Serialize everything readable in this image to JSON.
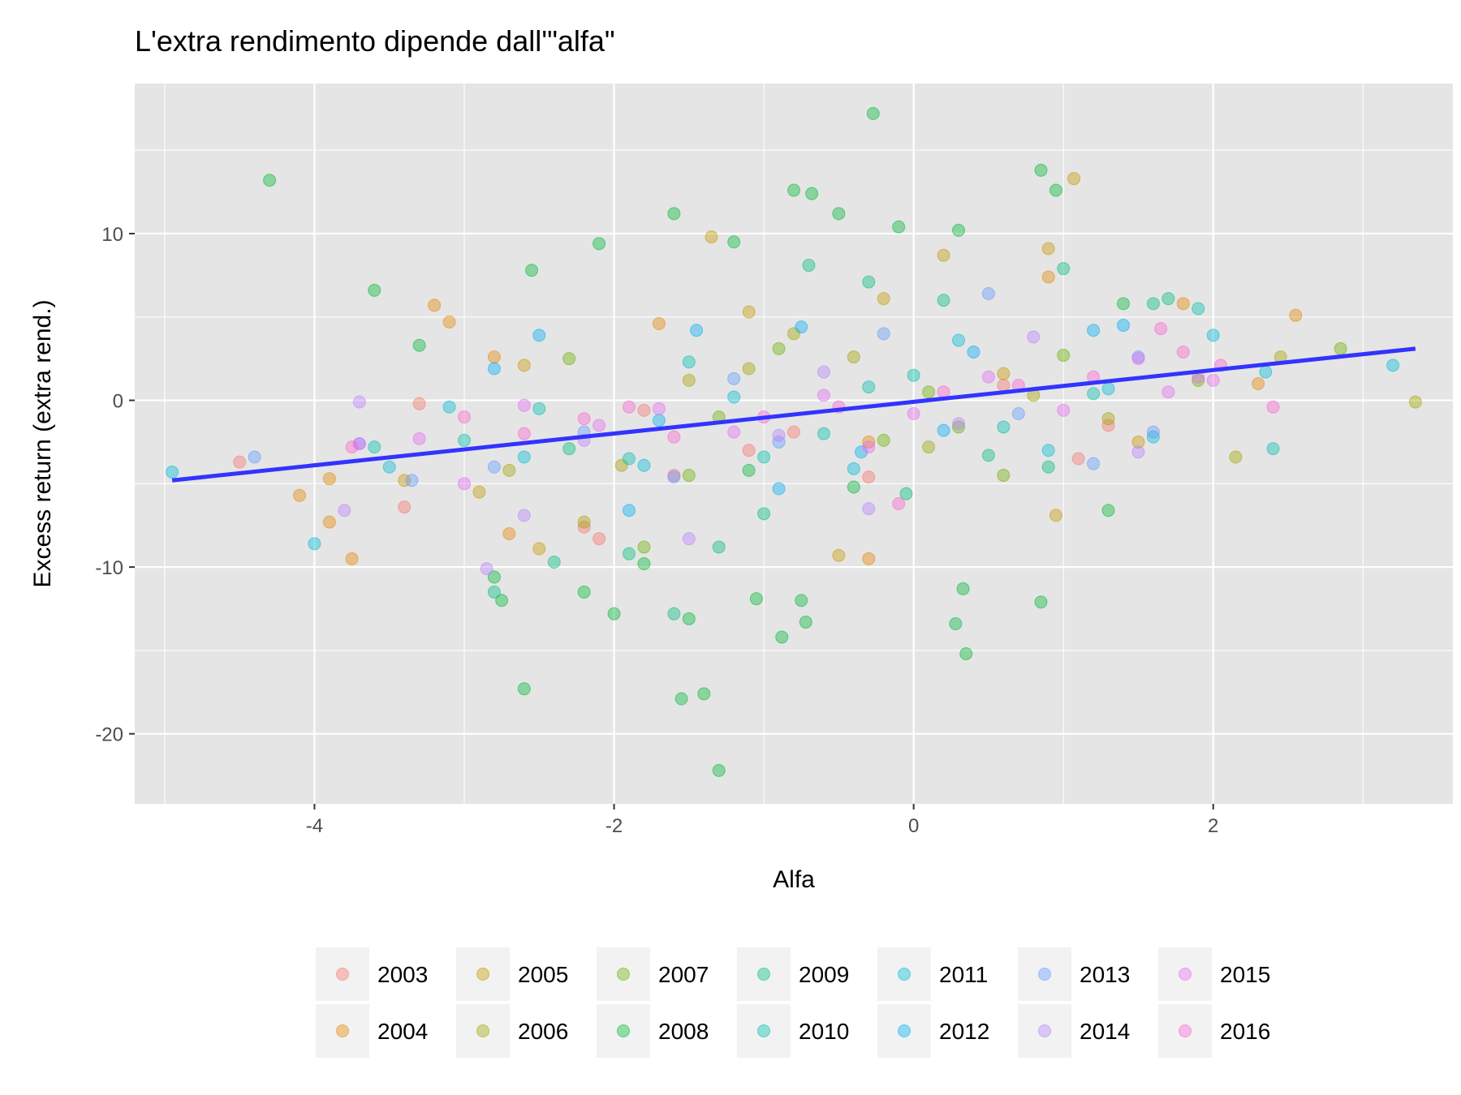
{
  "chart_data": {
    "type": "scatter",
    "title": "L'extra rendimento dipende dall'\"alfa\"",
    "xlabel": "Alfa",
    "ylabel": "Excess return (extra rend.)",
    "xlim": [
      -5.2,
      3.6
    ],
    "ylim": [
      -24.2,
      19.0
    ],
    "x_ticks": [
      -4,
      -2,
      0,
      2
    ],
    "x_tick_labels": [
      "-4",
      "-2",
      "0",
      "2"
    ],
    "y_ticks": [
      -20,
      -10,
      0,
      10
    ],
    "y_tick_labels": [
      "-20",
      "-10",
      "0",
      "10"
    ],
    "grid": true,
    "legend_position": "bottom",
    "point_opacity": 0.4,
    "series": [
      {
        "name": "2003",
        "color": "#F8766D",
        "points": [
          [
            -4.5,
            -3.7
          ],
          [
            -3.4,
            -6.4
          ],
          [
            -3.3,
            -0.2
          ],
          [
            -2.2,
            -7.6
          ],
          [
            -2.1,
            -8.3
          ],
          [
            -1.6,
            -4.5
          ],
          [
            -1.1,
            -3.0
          ],
          [
            -0.3,
            -4.6
          ],
          [
            0.6,
            0.9
          ],
          [
            1.1,
            -3.5
          ],
          [
            1.3,
            -1.5
          ],
          [
            -1.8,
            -0.6
          ],
          [
            -0.8,
            -1.9
          ]
        ]
      },
      {
        "name": "2004",
        "color": "#E58700",
        "points": [
          [
            -4.1,
            -5.7
          ],
          [
            -3.9,
            -4.7
          ],
          [
            -3.75,
            -9.5
          ],
          [
            -3.9,
            -7.3
          ],
          [
            -3.2,
            5.7
          ],
          [
            -3.1,
            4.7
          ],
          [
            -2.8,
            2.6
          ],
          [
            -2.7,
            -8.0
          ],
          [
            -1.7,
            4.6
          ],
          [
            -0.3,
            -2.5
          ],
          [
            0.9,
            7.4
          ],
          [
            1.8,
            5.8
          ],
          [
            2.3,
            1.0
          ],
          [
            2.55,
            5.1
          ],
          [
            -0.3,
            -9.5
          ]
        ]
      },
      {
        "name": "2005",
        "color": "#C99800",
        "points": [
          [
            -3.4,
            -4.8
          ],
          [
            -2.9,
            -5.5
          ],
          [
            -2.6,
            2.1
          ],
          [
            -2.5,
            -8.9
          ],
          [
            -1.35,
            9.8
          ],
          [
            -1.1,
            5.3
          ],
          [
            -0.5,
            -9.3
          ],
          [
            0.2,
            8.7
          ],
          [
            0.9,
            9.1
          ],
          [
            1.07,
            13.3
          ],
          [
            0.95,
            -6.9
          ],
          [
            -0.2,
            6.1
          ],
          [
            1.5,
            -2.5
          ],
          [
            0.6,
            1.6
          ]
        ]
      },
      {
        "name": "2006",
        "color": "#A3A500",
        "points": [
          [
            -2.7,
            -4.2
          ],
          [
            -2.2,
            -7.3
          ],
          [
            -1.95,
            -3.9
          ],
          [
            -1.5,
            1.2
          ],
          [
            -0.8,
            4.0
          ],
          [
            -0.4,
            2.6
          ],
          [
            0.1,
            -2.8
          ],
          [
            0.8,
            0.3
          ],
          [
            1.3,
            -1.1
          ],
          [
            2.15,
            -3.4
          ],
          [
            2.45,
            2.6
          ],
          [
            3.35,
            -0.1
          ],
          [
            -1.1,
            1.9
          ]
        ]
      },
      {
        "name": "2007",
        "color": "#6BB100",
        "points": [
          [
            -2.3,
            2.5
          ],
          [
            -1.8,
            -8.8
          ],
          [
            -1.5,
            -4.5
          ],
          [
            -0.9,
            3.1
          ],
          [
            -0.2,
            -2.4
          ],
          [
            0.3,
            -1.6
          ],
          [
            0.6,
            -4.5
          ],
          [
            1.0,
            2.7
          ],
          [
            2.85,
            3.1
          ],
          [
            1.9,
            1.2
          ],
          [
            -1.3,
            -1.0
          ],
          [
            0.1,
            0.5
          ]
        ]
      },
      {
        "name": "2008",
        "color": "#00BA38",
        "points": [
          [
            -4.3,
            13.2
          ],
          [
            -3.6,
            6.6
          ],
          [
            -3.3,
            3.3
          ],
          [
            -2.8,
            -10.6
          ],
          [
            -2.75,
            -12.0
          ],
          [
            -2.6,
            -17.3
          ],
          [
            -2.55,
            7.8
          ],
          [
            -2.1,
            9.4
          ],
          [
            -1.6,
            11.2
          ],
          [
            -1.55,
            -17.9
          ],
          [
            -1.3,
            -22.2
          ],
          [
            -1.4,
            -17.6
          ],
          [
            -1.2,
            9.5
          ],
          [
            -0.8,
            12.6
          ],
          [
            -0.68,
            12.4
          ],
          [
            -0.5,
            11.2
          ],
          [
            -0.27,
            17.2
          ],
          [
            -0.1,
            10.4
          ],
          [
            0.3,
            10.2
          ],
          [
            0.35,
            -15.2
          ],
          [
            0.85,
            13.8
          ],
          [
            0.95,
            12.6
          ],
          [
            -0.72,
            -13.3
          ],
          [
            -0.75,
            -12.0
          ],
          [
            -0.88,
            -14.2
          ],
          [
            0.33,
            -11.3
          ],
          [
            0.28,
            -13.4
          ],
          [
            0.85,
            -12.1
          ],
          [
            -2.0,
            -12.8
          ],
          [
            -2.2,
            -11.5
          ],
          [
            -1.5,
            -13.1
          ],
          [
            -1.05,
            -11.9
          ],
          [
            -1.8,
            -9.8
          ],
          [
            1.3,
            -6.6
          ],
          [
            1.4,
            5.8
          ],
          [
            -1.1,
            -4.2
          ],
          [
            -0.4,
            -5.2
          ]
        ]
      },
      {
        "name": "2009",
        "color": "#00BF7D",
        "points": [
          [
            -2.8,
            -11.5
          ],
          [
            -2.4,
            -9.7
          ],
          [
            -1.9,
            -9.2
          ],
          [
            -1.3,
            -8.8
          ],
          [
            -1.6,
            -12.8
          ],
          [
            -0.7,
            8.1
          ],
          [
            -0.3,
            7.1
          ],
          [
            -0.05,
            -5.6
          ],
          [
            0.5,
            -3.3
          ],
          [
            1.0,
            7.9
          ],
          [
            1.6,
            5.8
          ],
          [
            1.7,
            6.1
          ],
          [
            -1.0,
            -6.8
          ],
          [
            0.2,
            6.0
          ],
          [
            -2.3,
            -2.9
          ],
          [
            0.9,
            -4.0
          ]
        ]
      },
      {
        "name": "2010",
        "color": "#00C0AF",
        "points": [
          [
            -3.6,
            -2.8
          ],
          [
            -3.0,
            -2.4
          ],
          [
            -2.5,
            -0.5
          ],
          [
            -1.9,
            -3.5
          ],
          [
            -1.5,
            2.3
          ],
          [
            -1.0,
            -3.4
          ],
          [
            -0.6,
            -2.0
          ],
          [
            0.0,
            1.5
          ],
          [
            0.6,
            -1.6
          ],
          [
            1.2,
            0.4
          ],
          [
            1.9,
            5.5
          ],
          [
            2.4,
            -2.9
          ],
          [
            -0.3,
            0.8
          ]
        ]
      },
      {
        "name": "2011",
        "color": "#00BCD8",
        "points": [
          [
            -4.95,
            -4.3
          ],
          [
            -4.0,
            -8.6
          ],
          [
            -3.5,
            -4.0
          ],
          [
            -3.1,
            -0.4
          ],
          [
            -2.6,
            -3.4
          ],
          [
            -1.8,
            -3.9
          ],
          [
            -1.2,
            0.2
          ],
          [
            -0.4,
            -4.1
          ],
          [
            0.3,
            3.6
          ],
          [
            0.9,
            -3.0
          ],
          [
            1.6,
            -2.2
          ],
          [
            2.0,
            3.9
          ],
          [
            2.35,
            1.7
          ],
          [
            3.2,
            2.1
          ],
          [
            1.3,
            0.7
          ]
        ]
      },
      {
        "name": "2012",
        "color": "#00B0F6",
        "points": [
          [
            -2.8,
            1.9
          ],
          [
            -2.5,
            3.9
          ],
          [
            -1.9,
            -6.6
          ],
          [
            -1.45,
            4.2
          ],
          [
            -0.75,
            4.4
          ],
          [
            -0.9,
            -5.3
          ],
          [
            -0.35,
            -3.1
          ],
          [
            0.4,
            2.9
          ],
          [
            1.2,
            4.2
          ],
          [
            1.4,
            4.5
          ],
          [
            -1.7,
            -1.2
          ],
          [
            0.2,
            -1.8
          ]
        ]
      },
      {
        "name": "2013",
        "color": "#619CFF",
        "points": [
          [
            -4.4,
            -3.4
          ],
          [
            -3.7,
            -2.6
          ],
          [
            -3.35,
            -4.8
          ],
          [
            -2.8,
            -4.0
          ],
          [
            -2.2,
            -1.9
          ],
          [
            -1.6,
            -4.6
          ],
          [
            -0.9,
            -2.5
          ],
          [
            -0.2,
            4.0
          ],
          [
            0.5,
            6.4
          ],
          [
            1.2,
            -3.8
          ],
          [
            1.5,
            2.6
          ],
          [
            1.6,
            -1.9
          ],
          [
            -1.2,
            1.3
          ],
          [
            0.7,
            -0.8
          ]
        ]
      },
      {
        "name": "2014",
        "color": "#B983FF",
        "points": [
          [
            -3.8,
            -6.6
          ],
          [
            -3.7,
            -0.1
          ],
          [
            -2.85,
            -10.1
          ],
          [
            -2.6,
            -6.9
          ],
          [
            -2.2,
            -2.4
          ],
          [
            -1.5,
            -8.3
          ],
          [
            -0.9,
            -2.1
          ],
          [
            -0.3,
            -6.5
          ],
          [
            0.3,
            -1.4
          ],
          [
            0.8,
            3.8
          ],
          [
            1.5,
            -3.1
          ],
          [
            -0.6,
            1.7
          ]
        ]
      },
      {
        "name": "2015",
        "color": "#E76BF3",
        "points": [
          [
            -3.7,
            -2.6
          ],
          [
            -3.3,
            -2.3
          ],
          [
            -3.0,
            -5.0
          ],
          [
            -2.6,
            -0.3
          ],
          [
            -2.1,
            -1.5
          ],
          [
            -1.7,
            -0.5
          ],
          [
            -1.2,
            -1.9
          ],
          [
            -0.6,
            0.3
          ],
          [
            0.0,
            -0.8
          ],
          [
            0.5,
            1.4
          ],
          [
            1.0,
            -0.6
          ],
          [
            1.5,
            2.5
          ],
          [
            1.7,
            0.5
          ],
          [
            1.9,
            1.4
          ],
          [
            2.0,
            1.2
          ],
          [
            -0.3,
            -2.8
          ]
        ]
      },
      {
        "name": "2016",
        "color": "#FD61D1",
        "points": [
          [
            -3.75,
            -2.8
          ],
          [
            -3.0,
            -1.0
          ],
          [
            -2.6,
            -2.0
          ],
          [
            -2.2,
            -1.1
          ],
          [
            -1.9,
            -0.4
          ],
          [
            -1.6,
            -2.2
          ],
          [
            -1.0,
            -1.0
          ],
          [
            -0.5,
            -0.4
          ],
          [
            0.2,
            0.5
          ],
          [
            0.7,
            0.9
          ],
          [
            1.2,
            1.4
          ],
          [
            1.65,
            4.3
          ],
          [
            2.05,
            2.1
          ],
          [
            2.4,
            -0.4
          ],
          [
            1.8,
            2.9
          ],
          [
            -0.1,
            -6.2
          ]
        ]
      }
    ],
    "trend_line": {
      "color": "#3333FF",
      "x": [
        -4.95,
        3.35
      ],
      "y": [
        -4.8,
        3.1
      ]
    }
  }
}
